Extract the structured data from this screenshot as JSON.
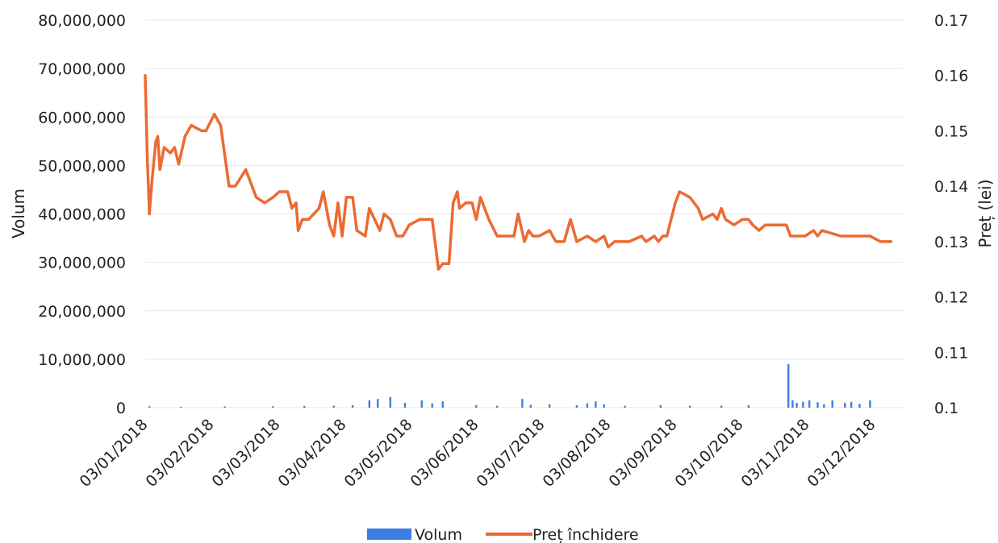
{
  "chart_data": {
    "type": "line",
    "title": "",
    "ylabel_left": "Volum",
    "ylabel_right": "Preț (lei)",
    "grid": true,
    "legend_position": "bottom",
    "x_tick_labels": [
      "03/01/2018",
      "03/02/2018",
      "03/03/2018",
      "03/04/2018",
      "03/05/2018",
      "03/06/2018",
      "03/07/2018",
      "03/08/2018",
      "03/09/2018",
      "03/10/2018",
      "03/11/2018",
      "03/12/2018"
    ],
    "y_left": {
      "min": 0,
      "max": 80000000,
      "tick_labels": [
        "0",
        "10,000,000",
        "20,000,000",
        "30,000,000",
        "40,000,000",
        "50,000,000",
        "60,000,000",
        "70,000,000",
        "80,000,000"
      ]
    },
    "y_right": {
      "min": 0.1,
      "max": 0.17,
      "tick_labels": [
        "0.1",
        "0.11",
        "0.12",
        "0.13",
        "0.14",
        "0.15",
        "0.16",
        "0.17"
      ]
    },
    "series": [
      {
        "name": "Volum",
        "type": "bar",
        "axis": "left",
        "color": "#3d7fe0",
        "points": [
          [
            "2018-01-05",
            300000
          ],
          [
            "2018-01-20",
            200000
          ],
          [
            "2018-02-10",
            250000
          ],
          [
            "2018-03-05",
            300000
          ],
          [
            "2018-03-20",
            350000
          ],
          [
            "2018-04-03",
            400000
          ],
          [
            "2018-04-12",
            500000
          ],
          [
            "2018-04-20",
            1500000
          ],
          [
            "2018-04-24",
            1800000
          ],
          [
            "2018-04-30",
            2200000
          ],
          [
            "2018-05-07",
            1000000
          ],
          [
            "2018-05-15",
            1500000
          ],
          [
            "2018-05-20",
            900000
          ],
          [
            "2018-05-25",
            1300000
          ],
          [
            "2018-06-10",
            500000
          ],
          [
            "2018-06-20",
            400000
          ],
          [
            "2018-07-02",
            1800000
          ],
          [
            "2018-07-06",
            600000
          ],
          [
            "2018-07-15",
            700000
          ],
          [
            "2018-07-28",
            500000
          ],
          [
            "2018-08-02",
            900000
          ],
          [
            "2018-08-06",
            1300000
          ],
          [
            "2018-08-10",
            700000
          ],
          [
            "2018-08-20",
            400000
          ],
          [
            "2018-09-06",
            500000
          ],
          [
            "2018-09-20",
            400000
          ],
          [
            "2018-10-05",
            400000
          ],
          [
            "2018-10-18",
            500000
          ],
          [
            "2018-11-06",
            9000000
          ],
          [
            "2018-11-08",
            1500000
          ],
          [
            "2018-11-10",
            1000000
          ],
          [
            "2018-11-13",
            1200000
          ],
          [
            "2018-11-16",
            1500000
          ],
          [
            "2018-11-20",
            1100000
          ],
          [
            "2018-11-23",
            700000
          ],
          [
            "2018-11-27",
            1500000
          ],
          [
            "2018-12-03",
            1000000
          ],
          [
            "2018-12-06",
            1200000
          ],
          [
            "2018-12-10",
            800000
          ],
          [
            "2018-12-15",
            1500000
          ]
        ]
      },
      {
        "name": "Preț închidere",
        "type": "line",
        "axis": "right",
        "color": "#ec6a33",
        "points": [
          [
            "2018-01-03",
            0.16
          ],
          [
            "2018-01-04",
            0.145
          ],
          [
            "2018-01-05",
            0.135
          ],
          [
            "2018-01-06",
            0.14
          ],
          [
            "2018-01-08",
            0.148
          ],
          [
            "2018-01-09",
            0.149
          ],
          [
            "2018-01-10",
            0.143
          ],
          [
            "2018-01-12",
            0.147
          ],
          [
            "2018-01-15",
            0.146
          ],
          [
            "2018-01-17",
            0.147
          ],
          [
            "2018-01-19",
            0.144
          ],
          [
            "2018-01-22",
            0.149
          ],
          [
            "2018-01-25",
            0.151
          ],
          [
            "2018-01-30",
            0.15
          ],
          [
            "2018-02-01",
            0.15
          ],
          [
            "2018-02-05",
            0.153
          ],
          [
            "2018-02-08",
            0.151
          ],
          [
            "2018-02-12",
            0.14
          ],
          [
            "2018-02-15",
            0.14
          ],
          [
            "2018-02-20",
            0.143
          ],
          [
            "2018-02-22",
            0.141
          ],
          [
            "2018-02-25",
            0.138
          ],
          [
            "2018-03-01",
            0.137
          ],
          [
            "2018-03-05",
            0.138
          ],
          [
            "2018-03-08",
            0.139
          ],
          [
            "2018-03-12",
            0.139
          ],
          [
            "2018-03-14",
            0.136
          ],
          [
            "2018-03-16",
            0.137
          ],
          [
            "2018-03-17",
            0.132
          ],
          [
            "2018-03-19",
            0.134
          ],
          [
            "2018-03-22",
            0.134
          ],
          [
            "2018-03-27",
            0.136
          ],
          [
            "2018-03-29",
            0.139
          ],
          [
            "2018-04-01",
            0.133
          ],
          [
            "2018-04-03",
            0.131
          ],
          [
            "2018-04-05",
            0.137
          ],
          [
            "2018-04-07",
            0.131
          ],
          [
            "2018-04-09",
            0.138
          ],
          [
            "2018-04-12",
            0.138
          ],
          [
            "2018-04-14",
            0.132
          ],
          [
            "2018-04-18",
            0.131
          ],
          [
            "2018-04-20",
            0.136
          ],
          [
            "2018-04-25",
            0.132
          ],
          [
            "2018-04-27",
            0.135
          ],
          [
            "2018-04-30",
            0.134
          ],
          [
            "2018-05-03",
            0.131
          ],
          [
            "2018-05-06",
            0.131
          ],
          [
            "2018-05-09",
            0.133
          ],
          [
            "2018-05-14",
            0.134
          ],
          [
            "2018-05-18",
            0.134
          ],
          [
            "2018-05-20",
            0.134
          ],
          [
            "2018-05-23",
            0.125
          ],
          [
            "2018-05-25",
            0.126
          ],
          [
            "2018-05-28",
            0.126
          ],
          [
            "2018-05-30",
            0.137
          ],
          [
            "2018-06-01",
            0.139
          ],
          [
            "2018-06-02",
            0.136
          ],
          [
            "2018-06-05",
            0.137
          ],
          [
            "2018-06-08",
            0.137
          ],
          [
            "2018-06-10",
            0.134
          ],
          [
            "2018-06-12",
            0.138
          ],
          [
            "2018-06-16",
            0.134
          ],
          [
            "2018-06-20",
            0.131
          ],
          [
            "2018-06-28",
            0.131
          ],
          [
            "2018-06-30",
            0.135
          ],
          [
            "2018-07-03",
            0.13
          ],
          [
            "2018-07-05",
            0.132
          ],
          [
            "2018-07-07",
            0.131
          ],
          [
            "2018-07-10",
            0.131
          ],
          [
            "2018-07-15",
            0.132
          ],
          [
            "2018-07-18",
            0.13
          ],
          [
            "2018-07-22",
            0.13
          ],
          [
            "2018-07-25",
            0.134
          ],
          [
            "2018-07-28",
            0.13
          ],
          [
            "2018-08-02",
            0.131
          ],
          [
            "2018-08-06",
            0.13
          ],
          [
            "2018-08-10",
            0.131
          ],
          [
            "2018-08-12",
            0.129
          ],
          [
            "2018-08-15",
            0.13
          ],
          [
            "2018-08-22",
            0.13
          ],
          [
            "2018-08-28",
            0.131
          ],
          [
            "2018-08-30",
            0.13
          ],
          [
            "2018-09-03",
            0.131
          ],
          [
            "2018-09-05",
            0.13
          ],
          [
            "2018-09-07",
            0.131
          ],
          [
            "2018-09-09",
            0.131
          ],
          [
            "2018-09-13",
            0.137
          ],
          [
            "2018-09-15",
            0.139
          ],
          [
            "2018-09-20",
            0.138
          ],
          [
            "2018-09-24",
            0.136
          ],
          [
            "2018-09-26",
            0.134
          ],
          [
            "2018-10-01",
            0.135
          ],
          [
            "2018-10-03",
            0.134
          ],
          [
            "2018-10-05",
            0.136
          ],
          [
            "2018-10-07",
            0.134
          ],
          [
            "2018-10-11",
            0.133
          ],
          [
            "2018-10-15",
            0.134
          ],
          [
            "2018-10-18",
            0.134
          ],
          [
            "2018-10-20",
            0.133
          ],
          [
            "2018-10-23",
            0.132
          ],
          [
            "2018-10-26",
            0.133
          ],
          [
            "2018-11-05",
            0.133
          ],
          [
            "2018-11-07",
            0.131
          ],
          [
            "2018-11-14",
            0.131
          ],
          [
            "2018-11-18",
            0.132
          ],
          [
            "2018-11-20",
            0.131
          ],
          [
            "2018-11-22",
            0.132
          ],
          [
            "2018-12-01",
            0.131
          ],
          [
            "2018-12-05",
            0.131
          ],
          [
            "2018-12-10",
            0.131
          ],
          [
            "2018-12-15",
            0.131
          ],
          [
            "2018-12-20",
            0.13
          ],
          [
            "2018-12-25",
            0.13
          ]
        ]
      }
    ],
    "x_domain": [
      "2018-01-03",
      "2018-12-31"
    ]
  }
}
